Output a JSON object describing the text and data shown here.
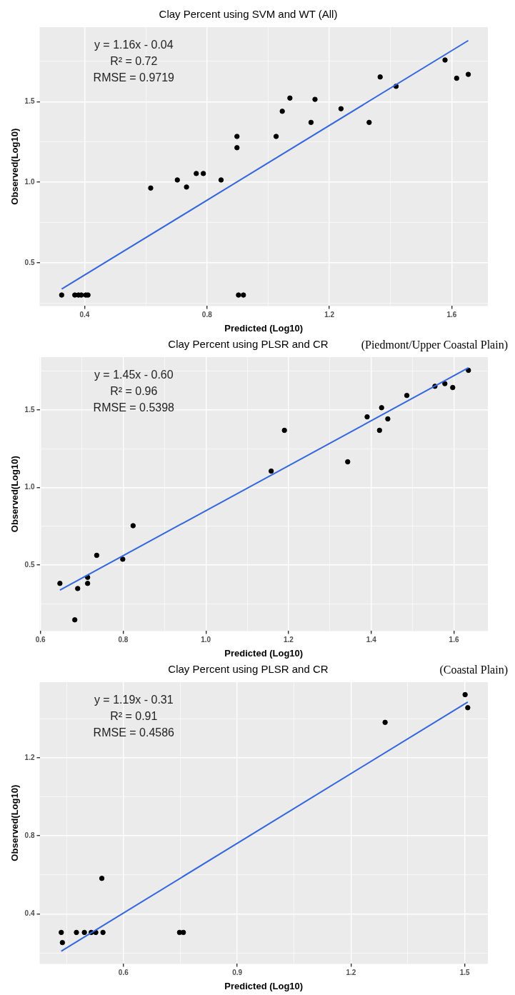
{
  "chart_data": [
    {
      "type": "scatter",
      "title": "Clay Percent using SVM and WT (All)",
      "xlabel": "Predicted (Log10)",
      "ylabel": "Observed(Log10)",
      "annotations": [
        "y = 1.16x - 0.04",
        "R² = 0.72",
        "RMSE = 0.9719"
      ],
      "grid": true,
      "marker": "circle",
      "xlim": [
        0.253,
        1.718
      ],
      "xticks": [
        0.4,
        {
          "value": 0.6,
          "label": null
        },
        0.8,
        {
          "value": 1.0,
          "label": null
        },
        1.2,
        {
          "value": 1.4,
          "label": null
        },
        1.6
      ],
      "ylim": [
        0.232,
        1.962
      ],
      "yticks": [
        {
          "value": 0.25,
          "label": null
        },
        0.5,
        {
          "value": 0.75,
          "label": null
        },
        {
          "value": 1.0,
          "label": "1.0"
        },
        {
          "value": 1.25,
          "label": null
        },
        1.5,
        {
          "value": 1.75,
          "label": null
        }
      ],
      "series": [
        {
          "color": "#000000",
          "x": [
            0.325,
            0.368,
            0.38,
            0.389,
            0.404,
            0.411,
            0.616,
            0.703,
            0.733,
            0.765,
            0.788,
            0.846,
            0.898,
            0.898,
            0.903,
            0.919,
            1.026,
            1.046,
            1.071,
            1.14,
            1.153,
            1.238,
            1.33,
            1.366,
            1.418,
            1.578,
            1.616,
            1.654
          ],
          "values": [
            0.3,
            0.3,
            0.3,
            0.3,
            0.3,
            0.3,
            0.964,
            1.014,
            0.97,
            1.054,
            1.054,
            1.014,
            1.284,
            1.214,
            0.3,
            0.3,
            1.284,
            1.44,
            1.522,
            1.371,
            1.514,
            1.456,
            1.371,
            1.653,
            1.595,
            1.758,
            1.645,
            1.669
          ]
        },
        {
          "type": "line",
          "color": "#3366dd",
          "marker": "none",
          "x": [
            0.325,
            1.654
          ],
          "values": [
            0.337,
            1.879
          ]
        }
      ]
    },
    {
      "type": "scatter",
      "title": "Clay Percent using PLSR and CR",
      "subtitle": "(Piedmont/Upper Coastal Plain)",
      "xlabel": "Predicted (Log10)",
      "ylabel": "Observed(Log10)",
      "annotations": [
        "y = 1.45x - 0.60",
        "R² = 0.96",
        "RMSE = 0.5398"
      ],
      "grid": true,
      "marker": "circle",
      "xlim": [
        0.598,
        1.682
      ],
      "xticks": [
        0.6,
        {
          "value": 0.7,
          "label": null
        },
        0.8,
        {
          "value": 0.9,
          "label": null
        },
        {
          "value": 1.0,
          "label": "1.0"
        },
        {
          "value": 1.1,
          "label": null
        },
        1.2,
        {
          "value": 1.3,
          "label": null
        },
        1.4,
        {
          "value": 1.5,
          "label": null
        },
        1.6
      ],
      "ylim": [
        0.074,
        1.84
      ],
      "yticks": [
        {
          "value": 0.25,
          "label": null
        },
        0.5,
        {
          "value": 0.75,
          "label": null
        },
        {
          "value": 1.0,
          "label": "1.0"
        },
        {
          "value": 1.25,
          "label": null
        },
        1.5,
        {
          "value": 1.75,
          "label": null
        }
      ],
      "series": [
        {
          "color": "#000000",
          "x": [
            0.647,
            0.69,
            0.683,
            0.714,
            0.714,
            0.736,
            0.799,
            0.824,
            1.158,
            1.19,
            1.343,
            1.39,
            1.42,
            1.425,
            1.44,
            1.486,
            1.554,
            1.578,
            1.597,
            1.635
          ],
          "values": [
            0.381,
            0.348,
            0.146,
            0.42,
            0.381,
            0.562,
            0.537,
            0.753,
            1.105,
            1.368,
            1.165,
            1.455,
            1.368,
            1.514,
            1.442,
            1.593,
            1.652,
            1.669,
            1.644,
            1.755
          ]
        },
        {
          "type": "line",
          "color": "#3366dd",
          "marker": "none",
          "x": [
            0.647,
            1.635
          ],
          "values": [
            0.338,
            1.771
          ]
        }
      ]
    },
    {
      "type": "scatter",
      "title": "Clay Percent using PLSR and CR",
      "subtitle": "(Coastal Plain)",
      "xlabel": "Predicted (Log10)",
      "ylabel": "Observed(Log10)",
      "annotations": [
        "y = 1.19x - 0.31",
        "R² = 0.91",
        "RMSE = 0.4586"
      ],
      "grid": true,
      "marker": "circle",
      "xlim": [
        0.379,
        1.561
      ],
      "xticks": [
        {
          "value": 0.45,
          "label": null
        },
        0.6,
        {
          "value": 0.75,
          "label": null
        },
        0.9,
        {
          "value": 1.05,
          "label": null
        },
        1.2,
        {
          "value": 1.35,
          "label": null
        },
        1.5
      ],
      "ylim": [
        0.144,
        1.587
      ],
      "yticks": [
        {
          "value": 0.2,
          "label": null
        },
        0.4,
        {
          "value": 0.6,
          "label": null
        },
        0.8,
        {
          "value": 1.0,
          "label": null
        },
        1.2,
        {
          "value": 1.4,
          "label": null
        }
      ],
      "series": [
        {
          "color": "#000000",
          "x": [
            0.436,
            0.439,
            0.476,
            0.497,
            0.515,
            0.527,
            0.543,
            0.546,
            0.748,
            0.758,
            1.29,
            1.501,
            1.508
          ],
          "values": [
            0.305,
            0.253,
            0.305,
            0.305,
            0.305,
            0.305,
            0.582,
            0.305,
            0.305,
            0.305,
            1.381,
            1.523,
            1.456
          ]
        },
        {
          "type": "line",
          "color": "#3366dd",
          "marker": "none",
          "x": [
            0.436,
            1.508
          ],
          "values": [
            0.209,
            1.485
          ]
        }
      ]
    }
  ]
}
